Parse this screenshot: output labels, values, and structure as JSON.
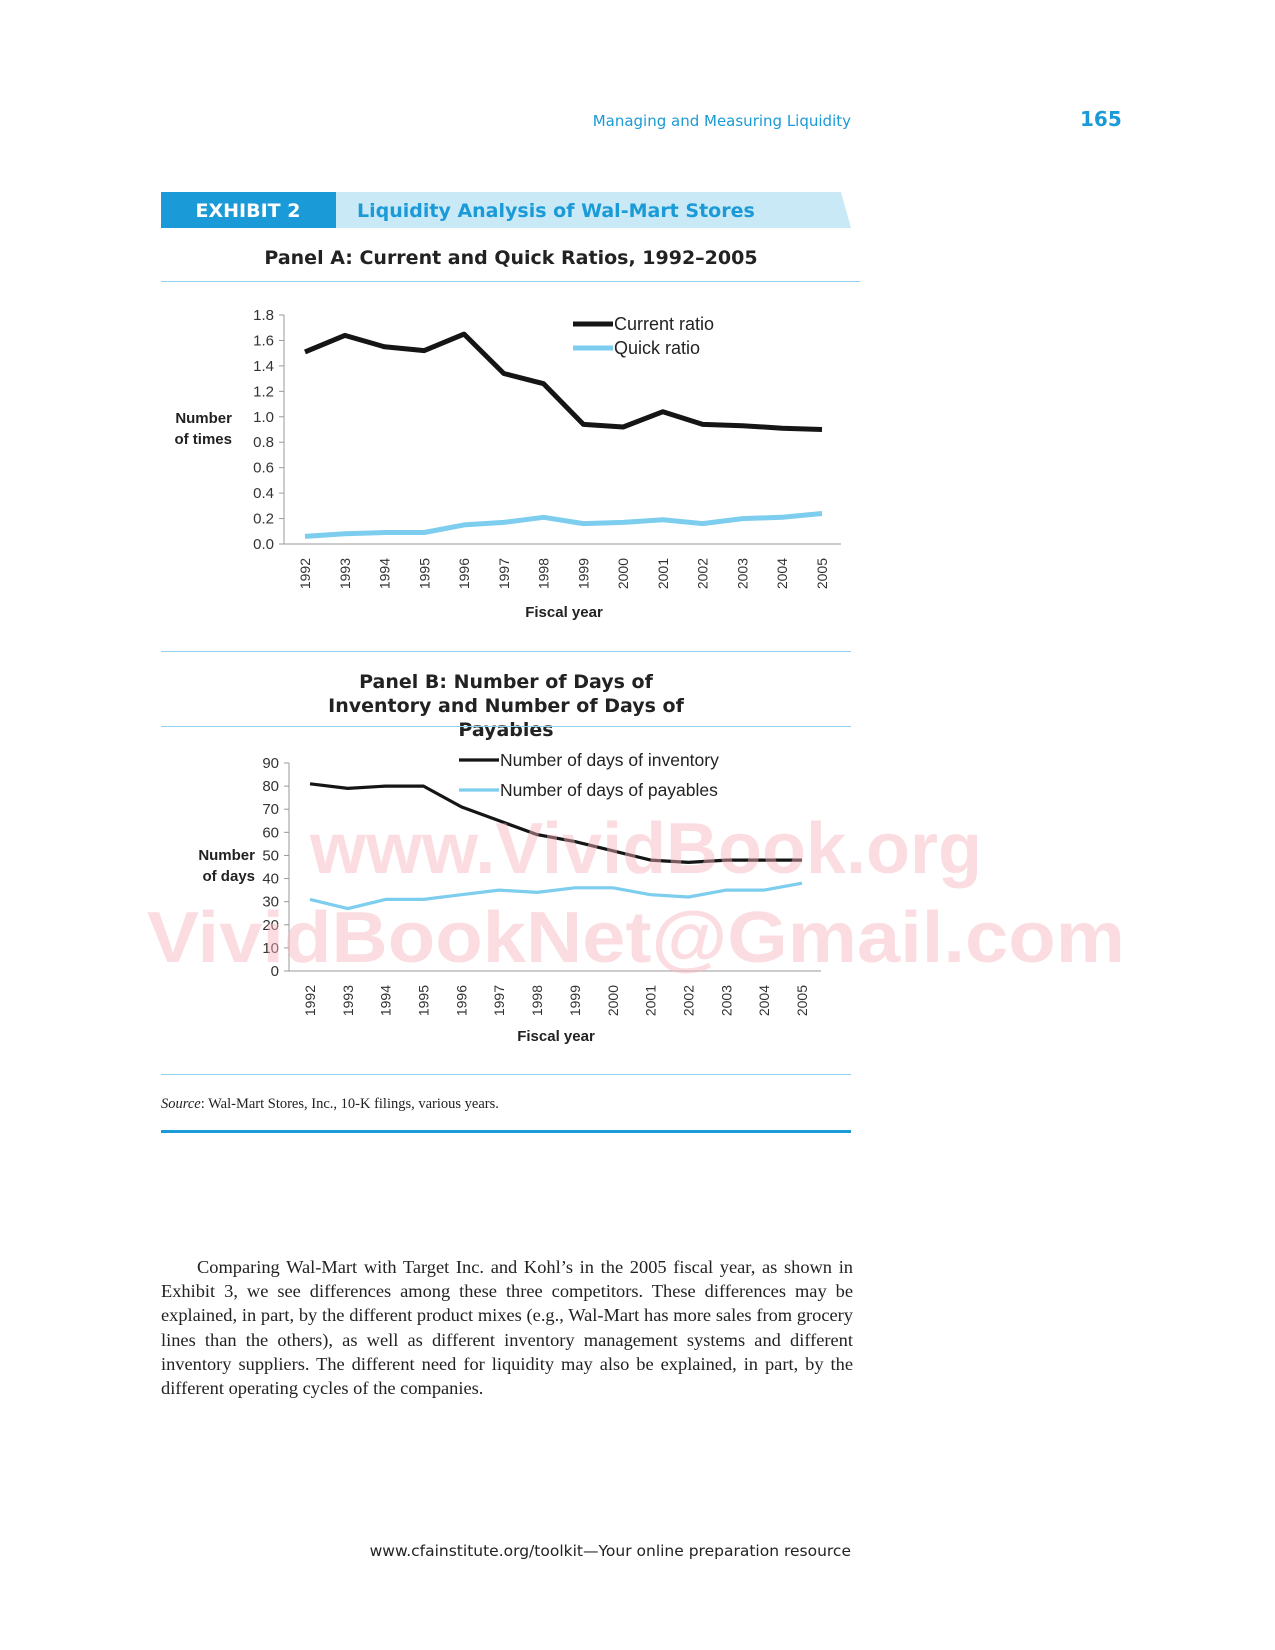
{
  "header": {
    "running_title": "Managing and Measuring Liquidity",
    "page_number": "165"
  },
  "exhibit": {
    "label": "EXHIBIT 2",
    "title": "Liquidity Analysis of Wal-Mart Stores"
  },
  "chart_data": [
    {
      "type": "line",
      "title": "Panel A: Current and Quick Ratios, 1992–2005",
      "xlabel": "Fiscal year",
      "ylabel": "Number of times",
      "categories": [
        "1992",
        "1993",
        "1994",
        "1995",
        "1996",
        "1997",
        "1998",
        "1999",
        "2000",
        "2001",
        "2002",
        "2003",
        "2004",
        "2005"
      ],
      "series": [
        {
          "name": "Current ratio",
          "color": "#151515",
          "values": [
            1.51,
            1.64,
            1.55,
            1.52,
            1.65,
            1.34,
            1.26,
            0.94,
            0.92,
            1.04,
            0.94,
            0.93,
            0.91,
            0.9
          ]
        },
        {
          "name": "Quick ratio",
          "color": "#7ccdee",
          "values": [
            0.06,
            0.08,
            0.09,
            0.09,
            0.15,
            0.17,
            0.21,
            0.16,
            0.17,
            0.19,
            0.16,
            0.2,
            0.21,
            0.24
          ]
        }
      ],
      "ylim": [
        0,
        1.8
      ],
      "yticks": [
        {
          "value": 0,
          "label": "0.0"
        },
        0.2,
        0.4,
        0.6,
        0.8,
        {
          "value": 1,
          "label": "1.0"
        },
        1.2,
        1.4,
        1.6,
        1.8
      ],
      "grid": false,
      "legend": "top-right"
    },
    {
      "type": "line",
      "title": "Panel B: Number of Days of Inventory and Number of Days of Payables",
      "xlabel": "Fiscal year",
      "ylabel": "Number of days",
      "categories": [
        "1992",
        "1993",
        "1994",
        "1995",
        "1996",
        "1997",
        "1998",
        "1999",
        "2000",
        "2001",
        "2002",
        "2003",
        "2004",
        "2005"
      ],
      "series": [
        {
          "name": "Number of days of inventory",
          "color": "#151515",
          "values": [
            81,
            79,
            80,
            80,
            71,
            65,
            59,
            56,
            52,
            48,
            47,
            48,
            48,
            48
          ]
        },
        {
          "name": "Number of days of payables",
          "color": "#7ccdee",
          "values": [
            31,
            27,
            31,
            31,
            33,
            35,
            34,
            36,
            36,
            33,
            32,
            35,
            35,
            38
          ]
        }
      ],
      "ylim": [
        0,
        90
      ],
      "yticks": [
        0,
        10,
        20,
        30,
        40,
        50,
        60,
        70,
        80,
        90
      ],
      "grid": false,
      "legend": "top-right"
    }
  ],
  "source": {
    "label": "Source",
    "text": ": Wal-Mart Stores, Inc., 10-K filings, various years."
  },
  "watermark": [
    "www.VividBook.org",
    "VividBookNet@Gmail.com"
  ],
  "body": "Comparing Wal-Mart with Target Inc. and Kohl’s in the 2005 fiscal year, as shown in Exhibit 3, we see differences among these three competitors. These differences may be explained, in part, by the different product mixes (e.g., Wal-Mart has more sales from grocery lines than the others), as well as different inventory management systems and different inventory suppliers. The different need for liquidity may also be explained, in part, by the different operating cycles of the companies.",
  "footer": "www.cfainstitute.org/toolkit—Your online preparation resource"
}
